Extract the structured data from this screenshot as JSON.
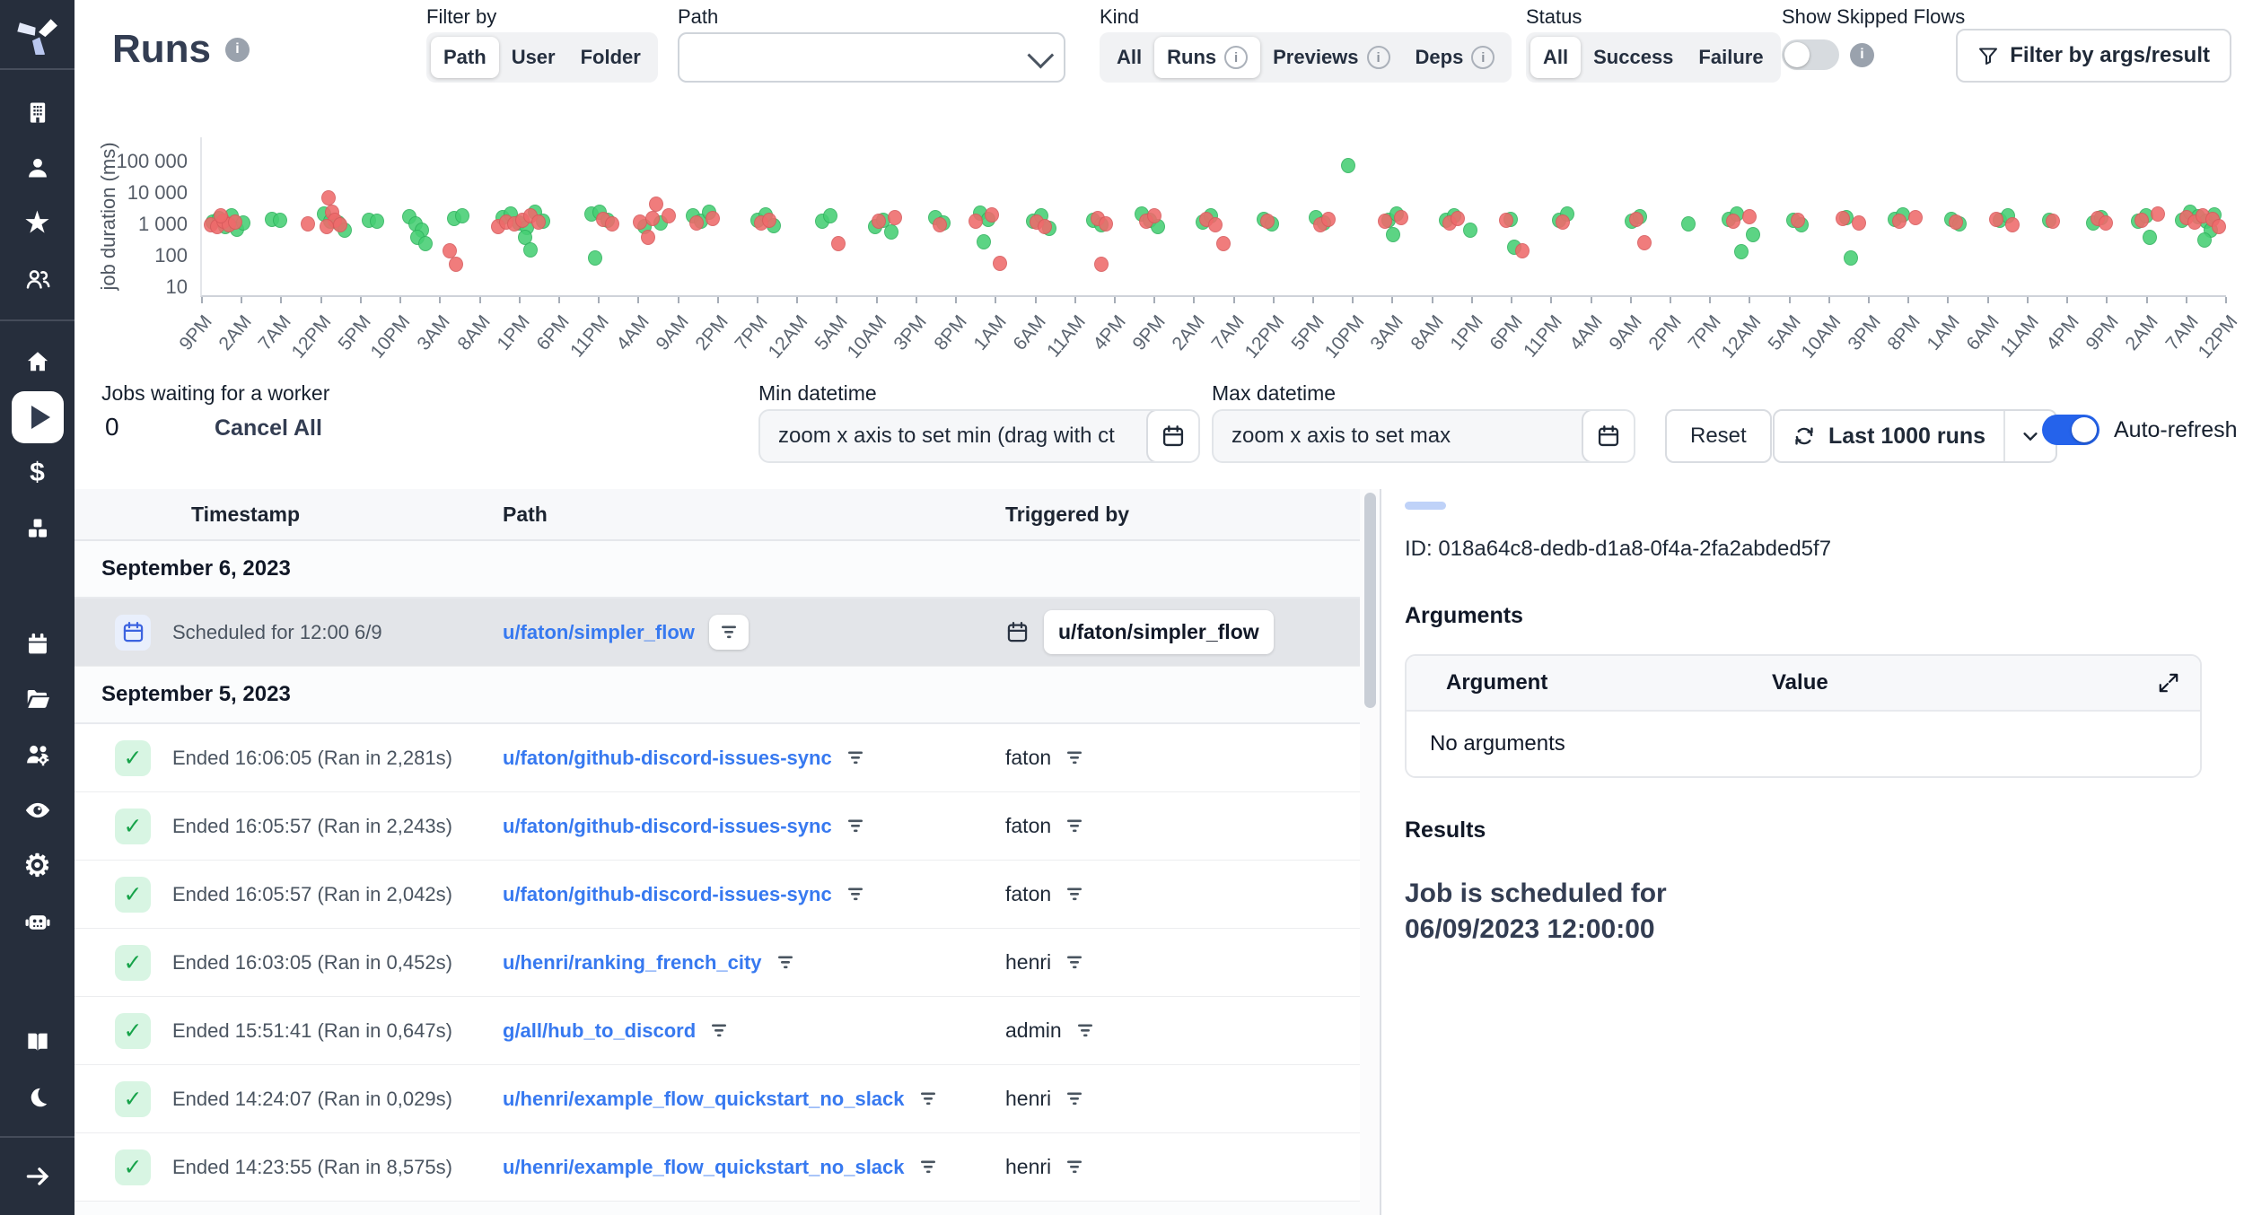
{
  "header": {
    "title": "Runs",
    "filter_by": {
      "label": "Filter by",
      "options": [
        {
          "label": "Path"
        },
        {
          "label": "User"
        },
        {
          "label": "Folder"
        }
      ],
      "selected": "Path"
    },
    "path_label": "Path",
    "path_value": "",
    "kind": {
      "label": "Kind",
      "options": [
        {
          "label": "All"
        },
        {
          "label": "Runs"
        },
        {
          "label": "Previews"
        },
        {
          "label": "Deps"
        }
      ],
      "selected": "Runs"
    },
    "status": {
      "label": "Status",
      "options": [
        {
          "label": "All"
        },
        {
          "label": "Success"
        },
        {
          "label": "Failure"
        }
      ],
      "selected": "All"
    },
    "skipped_label": "Show Skipped Flows",
    "args_filter_label": "Filter by args/result"
  },
  "controls": {
    "jobs_waiting_label": "Jobs waiting for a worker",
    "jobs_waiting_value": "0",
    "cancel_all_label": "Cancel All",
    "min_datetime": {
      "label": "Min datetime",
      "placeholder": "zoom x axis to set min (drag with ct"
    },
    "max_datetime": {
      "label": "Max datetime",
      "placeholder": "zoom x axis to set max"
    },
    "reset_label": "Reset",
    "last_runs_label": "Last 1000 runs",
    "auto_refresh_label": "Auto-refresh",
    "auto_refresh_on": true
  },
  "chart_data": {
    "type": "scatter",
    "ylabel": "job duration (ms)",
    "y_scale": "log",
    "ylim": [
      10,
      100000
    ],
    "grid": false,
    "y_ticks": [
      {
        "label": "100 000",
        "value": 100000
      },
      {
        "label": "10 000",
        "value": 10000
      },
      {
        "label": "1 000",
        "value": 1000
      },
      {
        "label": "100",
        "value": 100
      },
      {
        "label": "10",
        "value": 10
      }
    ],
    "x_labels": [
      "9PM",
      "2AM",
      "7AM",
      "12PM",
      "5PM",
      "10PM",
      "3AM",
      "8AM",
      "1PM",
      "6PM",
      "11PM",
      "4AM",
      "9AM",
      "2PM",
      "7PM",
      "12AM",
      "5AM",
      "10AM",
      "3PM",
      "8PM",
      "1AM",
      "6AM",
      "11AM",
      "4PM",
      "9PM",
      "2AM",
      "7AM",
      "12PM",
      "5PM",
      "10PM",
      "3AM",
      "8AM",
      "1PM",
      "6PM",
      "11PM",
      "4AM",
      "9AM",
      "2PM",
      "7PM",
      "12AM",
      "5AM",
      "10AM",
      "3PM",
      "8PM",
      "1AM",
      "6AM",
      "11AM",
      "4PM",
      "9PM",
      "2AM",
      "7AM",
      "12PM"
    ],
    "series": [
      {
        "name": "success",
        "color": "#46cf74",
        "points": [
          [
            0.5,
            1300
          ],
          [
            0.8,
            1650
          ],
          [
            1.1,
            950
          ],
          [
            1.4,
            2100
          ],
          [
            1.7,
            780
          ],
          [
            2.0,
            1250
          ],
          [
            3.4,
            1600
          ],
          [
            3.8,
            1450
          ],
          [
            6.0,
            2300
          ],
          [
            6.3,
            1350
          ],
          [
            6.7,
            1250
          ],
          [
            7.0,
            720
          ],
          [
            8.2,
            1500
          ],
          [
            8.6,
            1400
          ],
          [
            10.2,
            1900
          ],
          [
            10.5,
            1150
          ],
          [
            10.8,
            720
          ],
          [
            10.6,
            430
          ],
          [
            11.0,
            260
          ],
          [
            12.4,
            1650
          ],
          [
            12.8,
            2100
          ],
          [
            14.8,
            1750
          ],
          [
            15.2,
            2400
          ],
          [
            15.6,
            1200
          ],
          [
            16.0,
            860
          ],
          [
            16.4,
            2700
          ],
          [
            16.8,
            1350
          ],
          [
            15.9,
            430
          ],
          [
            16.2,
            170
          ],
          [
            19.2,
            2300
          ],
          [
            19.6,
            2700
          ],
          [
            20.0,
            1500
          ],
          [
            19.4,
            95
          ],
          [
            21.8,
            960
          ],
          [
            22.6,
            1250
          ],
          [
            24.2,
            2000
          ],
          [
            24.6,
            1400
          ],
          [
            25.0,
            2600
          ],
          [
            27.4,
            1500
          ],
          [
            27.8,
            2200
          ],
          [
            28.2,
            1000
          ],
          [
            30.6,
            1400
          ],
          [
            31.0,
            2000
          ],
          [
            33.2,
            950
          ],
          [
            33.6,
            1500
          ],
          [
            34.0,
            620
          ],
          [
            36.2,
            1800
          ],
          [
            36.6,
            1250
          ],
          [
            38.4,
            2500
          ],
          [
            38.8,
            1600
          ],
          [
            38.6,
            310
          ],
          [
            41.0,
            1400
          ],
          [
            41.4,
            2000
          ],
          [
            41.8,
            820
          ],
          [
            44.0,
            1500
          ],
          [
            44.4,
            1050
          ],
          [
            46.4,
            2400
          ],
          [
            46.8,
            1500
          ],
          [
            47.2,
            960
          ],
          [
            49.4,
            1300
          ],
          [
            49.8,
            2000
          ],
          [
            52.4,
            1600
          ],
          [
            52.8,
            1150
          ],
          [
            55.0,
            1800
          ],
          [
            55.4,
            1250
          ],
          [
            56.6,
            80000
          ],
          [
            58.6,
            1500
          ],
          [
            59.0,
            2300
          ],
          [
            58.8,
            520
          ],
          [
            61.4,
            1450
          ],
          [
            61.8,
            2100
          ],
          [
            62.6,
            740
          ],
          [
            64.6,
            1600
          ],
          [
            64.8,
            210
          ],
          [
            67.0,
            1500
          ],
          [
            67.4,
            2400
          ],
          [
            70.6,
            1350
          ],
          [
            71.0,
            1900
          ],
          [
            73.4,
            1150
          ],
          [
            75.4,
            1600
          ],
          [
            75.8,
            2300
          ],
          [
            76.6,
            520
          ],
          [
            76.0,
            150
          ],
          [
            78.6,
            1500
          ],
          [
            79.0,
            1050
          ],
          [
            81.2,
            1800
          ],
          [
            81.4,
            95
          ],
          [
            83.6,
            1550
          ],
          [
            84.0,
            2200
          ],
          [
            86.4,
            1600
          ],
          [
            86.8,
            1150
          ],
          [
            88.8,
            1450
          ],
          [
            89.2,
            2000
          ],
          [
            91.2,
            1500
          ],
          [
            93.4,
            1250
          ],
          [
            93.8,
            1750
          ],
          [
            95.6,
            1350
          ],
          [
            96.0,
            2100
          ],
          [
            96.2,
            420
          ],
          [
            97.8,
            1500
          ],
          [
            98.2,
            2600
          ],
          [
            98.6,
            1950
          ],
          [
            99.0,
            1350
          ],
          [
            99.4,
            2250
          ],
          [
            99.2,
            730
          ],
          [
            98.9,
            360
          ]
        ]
      },
      {
        "name": "failure",
        "color": "#ef6a6b",
        "points": [
          [
            0.4,
            1100
          ],
          [
            0.7,
            960
          ],
          [
            1.0,
            1400
          ],
          [
            1.3,
            1080
          ],
          [
            1.6,
            1280
          ],
          [
            0.9,
            2100
          ],
          [
            5.2,
            1120
          ],
          [
            6.2,
            7500
          ],
          [
            6.4,
            2700
          ],
          [
            6.5,
            1450
          ],
          [
            6.8,
            1060
          ],
          [
            6.1,
            920
          ],
          [
            12.2,
            160
          ],
          [
            12.5,
            60
          ],
          [
            14.6,
            960
          ],
          [
            15.0,
            1280
          ],
          [
            15.4,
            1120
          ],
          [
            15.8,
            1500
          ],
          [
            16.2,
            2000
          ],
          [
            16.6,
            1280
          ],
          [
            19.8,
            1600
          ],
          [
            20.2,
            1160
          ],
          [
            21.6,
            1280
          ],
          [
            22.2,
            1700
          ],
          [
            22.4,
            5000
          ],
          [
            23.0,
            2100
          ],
          [
            22.0,
            420
          ],
          [
            24.4,
            1250
          ],
          [
            25.2,
            1650
          ],
          [
            27.6,
            1180
          ],
          [
            28.0,
            1500
          ],
          [
            31.4,
            260
          ],
          [
            33.4,
            1350
          ],
          [
            34.2,
            1800
          ],
          [
            36.4,
            1050
          ],
          [
            38.2,
            1400
          ],
          [
            39.0,
            2200
          ],
          [
            39.4,
            65
          ],
          [
            41.2,
            1280
          ],
          [
            41.6,
            920
          ],
          [
            44.2,
            1650
          ],
          [
            44.6,
            1150
          ],
          [
            44.4,
            58
          ],
          [
            46.6,
            1350
          ],
          [
            47.0,
            2000
          ],
          [
            49.6,
            1550
          ],
          [
            50.0,
            1080
          ],
          [
            50.4,
            260
          ],
          [
            52.6,
            1420
          ],
          [
            55.2,
            1050
          ],
          [
            55.6,
            1580
          ],
          [
            58.4,
            1350
          ],
          [
            59.2,
            1800
          ],
          [
            61.6,
            1250
          ],
          [
            62.0,
            1680
          ],
          [
            64.4,
            1450
          ],
          [
            65.2,
            160
          ],
          [
            67.2,
            1280
          ],
          [
            70.8,
            1550
          ],
          [
            71.2,
            290
          ],
          [
            75.6,
            1350
          ],
          [
            76.4,
            1900
          ],
          [
            78.8,
            1480
          ],
          [
            81.0,
            1650
          ],
          [
            81.8,
            1250
          ],
          [
            83.8,
            1380
          ],
          [
            84.6,
            1780
          ],
          [
            86.6,
            1280
          ],
          [
            88.6,
            1550
          ],
          [
            89.4,
            1080
          ],
          [
            91.4,
            1350
          ],
          [
            93.6,
            1650
          ],
          [
            94.0,
            1180
          ],
          [
            95.8,
            1450
          ],
          [
            96.6,
            2300
          ],
          [
            98.0,
            1750
          ],
          [
            98.4,
            1280
          ],
          [
            98.8,
            2050
          ],
          [
            99.3,
            1550
          ],
          [
            99.6,
            950
          ]
        ]
      }
    ]
  },
  "table": {
    "columns": [
      "Timestamp",
      "Path",
      "Triggered by"
    ],
    "rows": [
      {
        "type": "date",
        "label": "September 6, 2023"
      },
      {
        "type": "job",
        "status": "scheduled",
        "selected": true,
        "timestamp": "Scheduled for 12:00 6/9",
        "path": "u/faton/simpler_flow",
        "triggered_icon": "calendar",
        "triggered": "u/faton/simpler_flow",
        "triggered_badge": true
      },
      {
        "type": "date",
        "label": "September 5, 2023"
      },
      {
        "type": "job",
        "status": "success",
        "timestamp": "Ended 16:06:05 (Ran in 2,281s)",
        "path": "u/faton/github-discord-issues-sync",
        "triggered": "faton"
      },
      {
        "type": "job",
        "status": "success",
        "timestamp": "Ended 16:05:57 (Ran in 2,243s)",
        "path": "u/faton/github-discord-issues-sync",
        "triggered": "faton"
      },
      {
        "type": "job",
        "status": "success",
        "timestamp": "Ended 16:05:57 (Ran in 2,042s)",
        "path": "u/faton/github-discord-issues-sync",
        "triggered": "faton"
      },
      {
        "type": "job",
        "status": "success",
        "timestamp": "Ended 16:03:05 (Ran in 0,452s)",
        "path": "u/henri/ranking_french_city",
        "triggered": "henri"
      },
      {
        "type": "job",
        "status": "success",
        "timestamp": "Ended 15:51:41 (Ran in 0,647s)",
        "path": "g/all/hub_to_discord",
        "triggered": "admin"
      },
      {
        "type": "job",
        "status": "success",
        "timestamp": "Ended 14:24:07 (Ran in 0,029s)",
        "path": "u/henri/example_flow_quickstart_no_slack",
        "triggered": "henri"
      },
      {
        "type": "job",
        "status": "success",
        "timestamp": "Ended 14:23:55 (Ran in 8,575s)",
        "path": "u/henri/example_flow_quickstart_no_slack",
        "triggered": "henri"
      },
      {
        "type": "date",
        "label": ""
      }
    ]
  },
  "detail": {
    "id_text": "ID: 018a64c8-dedb-d1a8-0f4a-2fa2abded5f7",
    "arguments_title": "Arguments",
    "argument_col": "Argument",
    "value_col": "Value",
    "no_arguments": "No arguments",
    "results_title": "Results",
    "result_text": "Job is scheduled for 06/09/2023 12:00:00"
  },
  "icons": {
    "logo": "windmill-logo",
    "sidebar": [
      "building-icon",
      "user-icon",
      "star-icon",
      "users-icon",
      "home-icon",
      "play-icon",
      "dollar-icon",
      "cubes-icon",
      "calendar-icon",
      "folder-icon",
      "workers-icon",
      "eye-icon",
      "gear-icon",
      "robot-icon",
      "book-icon",
      "moon-icon",
      "arrow-right-icon"
    ]
  },
  "colors": {
    "sidebar_bg": "#262e3c",
    "accent_blue": "#2563eb",
    "link_blue": "#3779f0",
    "success_green": "#17a34a",
    "dot_green": "#46cf74",
    "dot_red": "#ef6a6b",
    "selected_row": "#e3e5e9"
  }
}
